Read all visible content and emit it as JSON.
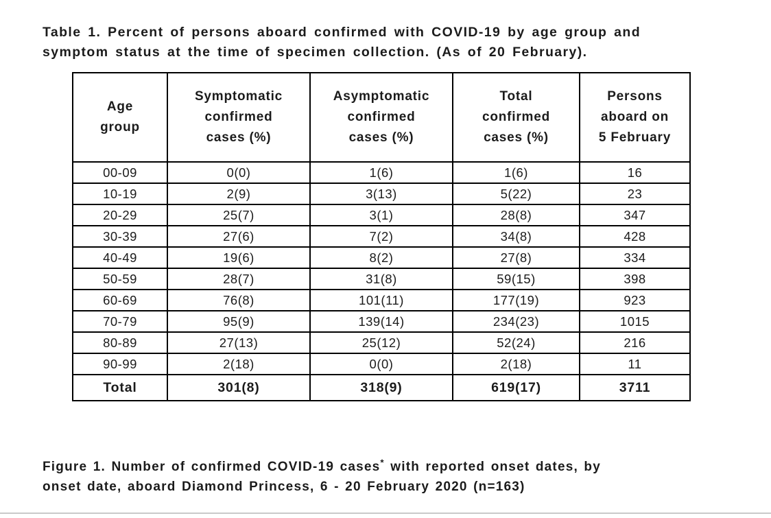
{
  "table_section": {
    "title_line1": "Table 1. Percent of persons aboard confirmed with COVID-19 by age group and",
    "title_line2": "symptom status at the time of specimen collection. (As of 20 February)."
  },
  "table": {
    "headers": [
      "Age\ngroup",
      "Symptomatic\nconfirmed\ncases (%)",
      "Asymptomatic\nconfirmed\ncases (%)",
      "Total\nconfirmed\ncases (%)",
      "Persons\naboard on\n5 February"
    ],
    "rows": [
      [
        "00-09",
        "0(0)",
        "1(6)",
        "1(6)",
        "16"
      ],
      [
        "10-19",
        "2(9)",
        "3(13)",
        "5(22)",
        "23"
      ],
      [
        "20-29",
        "25(7)",
        "3(1)",
        "28(8)",
        "347"
      ],
      [
        "30-39",
        "27(6)",
        "7(2)",
        "34(8)",
        "428"
      ],
      [
        "40-49",
        "19(6)",
        "8(2)",
        "27(8)",
        "334"
      ],
      [
        "50-59",
        "28(7)",
        "31(8)",
        "59(15)",
        "398"
      ],
      [
        "60-69",
        "76(8)",
        "101(11)",
        "177(19)",
        "923"
      ],
      [
        "70-79",
        "95(9)",
        "139(14)",
        "234(23)",
        "1015"
      ],
      [
        "80-89",
        "27(13)",
        "25(12)",
        "52(24)",
        "216"
      ],
      [
        "90-99",
        "2(18)",
        "0(0)",
        "2(18)",
        "11"
      ]
    ],
    "total_row": [
      "Total",
      "301(8)",
      "318(9)",
      "619(17)",
      "3711"
    ]
  },
  "figure_section": {
    "caption_prefix": "Figure 1. Number of confirmed COVID-19 cases",
    "asterisk": "*",
    "caption_suffix": " with reported onset dates, by",
    "caption_line2": "onset date, aboard Diamond Princess, 6 - 20 February 2020 (n=163)"
  },
  "colors": {
    "text": "#1b1b1b",
    "table_border": "#000000",
    "bottom_rule": "#c9c9c9",
    "background": "#ffffff"
  }
}
